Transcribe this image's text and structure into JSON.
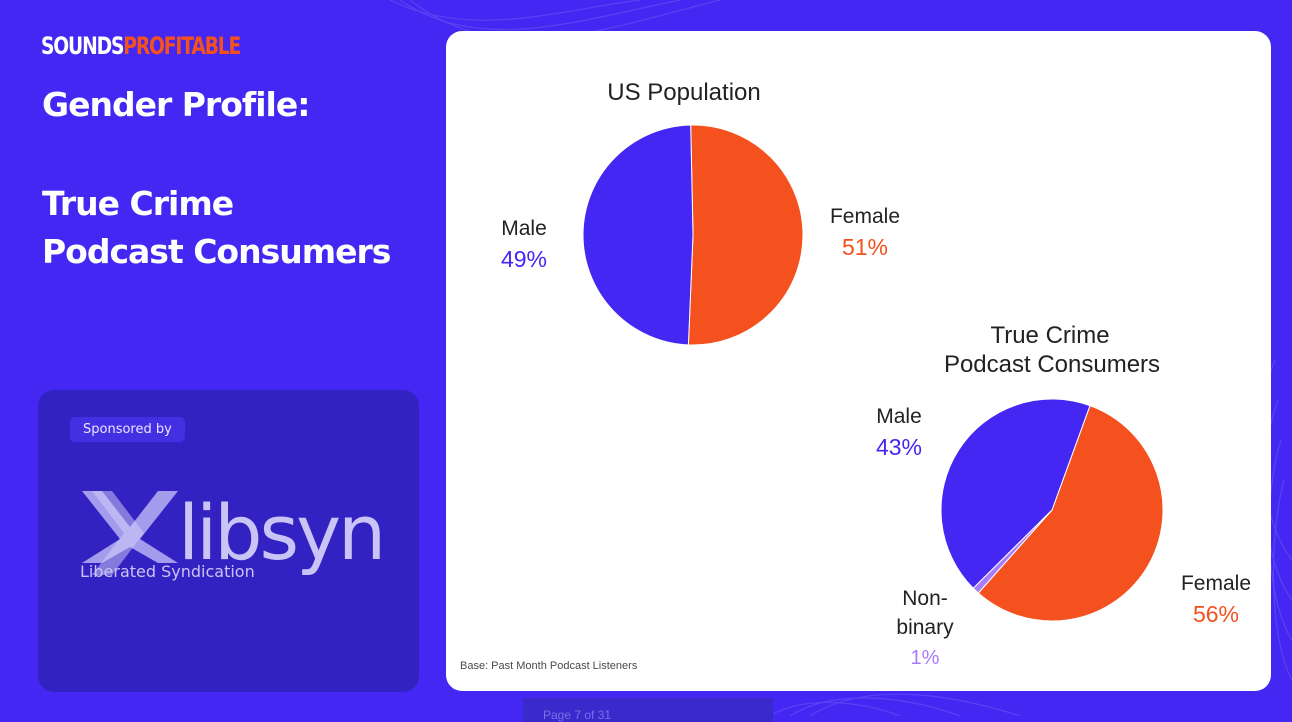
{
  "brand": {
    "part1": "SOUNDS",
    "part2": "PROFITABLE"
  },
  "heading": {
    "line1": "Gender Profile:",
    "line2": "True Crime",
    "line3": "Podcast Consumers"
  },
  "sponsor": {
    "label": "Sponsored by",
    "logo_text": "libsyn",
    "logo_tagline": "Liberated Syndication"
  },
  "footnote": "Base: Past Month Podcast Listeners",
  "pager": {
    "text": "Page 7 of 31"
  },
  "colors": {
    "male": "#4427f2",
    "female": "#f4511e",
    "nonbinary": "#a77bfa",
    "background": "#4427f2"
  },
  "chart_data": [
    {
      "type": "pie",
      "title": "US Population",
      "slices": [
        {
          "label": "Female",
          "value": 51,
          "display": "51%",
          "color": "#f4511e"
        },
        {
          "label": "Male",
          "value": 49,
          "display": "49%",
          "color": "#4427f2"
        }
      ]
    },
    {
      "type": "pie",
      "title": "True Crime Podcast Consumers",
      "title_lines": [
        "True Crime",
        "Podcast Consumers"
      ],
      "slices": [
        {
          "label": "Female",
          "value": 56,
          "display": "56%",
          "color": "#f4511e"
        },
        {
          "label": "Non-binary",
          "label_lines": [
            "Non-",
            "binary"
          ],
          "value": 1,
          "display": "1%",
          "color": "#a77bfa"
        },
        {
          "label": "Male",
          "value": 43,
          "display": "43%",
          "color": "#4427f2"
        }
      ]
    }
  ]
}
